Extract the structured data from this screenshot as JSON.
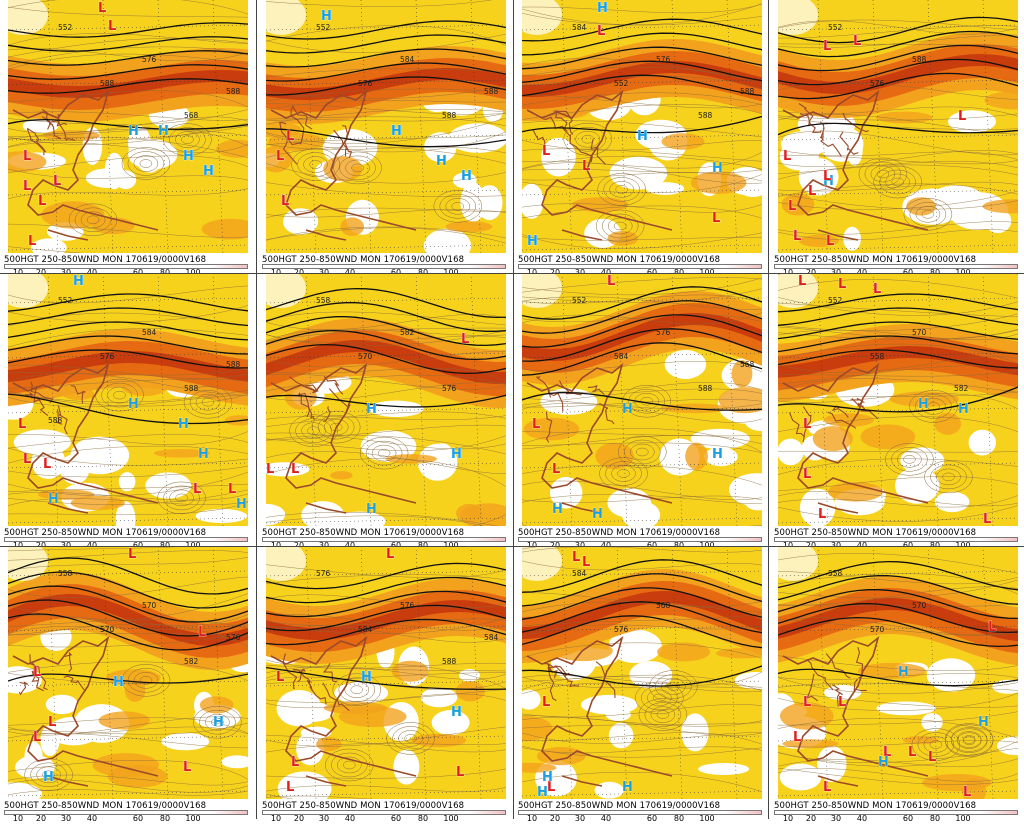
{
  "caption": "500HGT 250-850WND MON 170619/0000V168",
  "scale_ticks": [
    "10",
    "20",
    "30",
    "40",
    "60",
    "80",
    "100"
  ],
  "colors": {
    "light_wind": "#f7d21c",
    "mid_wind": "#f3a21e",
    "strong_wind": "#e66a12",
    "jet_core": "#c83c0e",
    "high_symbol": "#1aa0e0",
    "low_symbol": "#e01e1e",
    "coastline": "#9a4a2a",
    "height_contour": "#111111"
  },
  "panels": [
    {
      "labels": [
        "552",
        "588",
        "576",
        "568",
        "588"
      ],
      "symbols": [
        "L",
        "L",
        "H",
        "H",
        "H",
        "H",
        "L",
        "L",
        "L",
        "L",
        "L"
      ]
    },
    {
      "labels": [
        "552",
        "576",
        "584",
        "588",
        "588"
      ],
      "symbols": [
        "H",
        "H",
        "L",
        "L",
        "H",
        "H",
        "L"
      ]
    },
    {
      "labels": [
        "584",
        "552",
        "576",
        "588",
        "588"
      ],
      "symbols": [
        "H",
        "L",
        "L",
        "H",
        "L",
        "H",
        "L",
        "H"
      ]
    },
    {
      "labels": [
        "552",
        "576",
        "588"
      ],
      "symbols": [
        "L",
        "L",
        "L",
        "H",
        "L",
        "L",
        "L",
        "L",
        "L",
        "L"
      ]
    },
    {
      "labels": [
        "552",
        "576",
        "584",
        "588",
        "588",
        "588"
      ],
      "symbols": [
        "H",
        "L",
        "L",
        "L",
        "H",
        "H",
        "H",
        "L",
        "L",
        "H",
        "H"
      ]
    },
    {
      "labels": [
        "558",
        "570",
        "582",
        "576"
      ],
      "symbols": [
        "L",
        "H",
        "H",
        "L",
        "L",
        "H"
      ]
    },
    {
      "labels": [
        "552",
        "584",
        "576",
        "588",
        "568"
      ],
      "symbols": [
        "L",
        "L",
        "H",
        "H",
        "L",
        "H",
        "H"
      ]
    },
    {
      "labels": [
        "552",
        "558",
        "570",
        "582"
      ],
      "symbols": [
        "L",
        "L",
        "L",
        "H",
        "L",
        "H",
        "L",
        "L",
        "L"
      ]
    },
    {
      "labels": [
        "558",
        "570",
        "570",
        "582",
        "576"
      ],
      "symbols": [
        "L",
        "L",
        "L",
        "H",
        "L",
        "L",
        "H",
        "H",
        "L"
      ]
    },
    {
      "labels": [
        "576",
        "584",
        "576",
        "588",
        "584"
      ],
      "symbols": [
        "L",
        "L",
        "H",
        "L",
        "H",
        "L",
        "L"
      ]
    },
    {
      "labels": [
        "584",
        "576",
        "568"
      ],
      "symbols": [
        "L",
        "L",
        "H",
        "L",
        "H",
        "H",
        "L"
      ]
    },
    {
      "labels": [
        "558",
        "570",
        "570"
      ],
      "symbols": [
        "L",
        "L",
        "H",
        "L",
        "L",
        "L",
        "L",
        "L",
        "H",
        "H",
        "L",
        "L"
      ]
    }
  ]
}
